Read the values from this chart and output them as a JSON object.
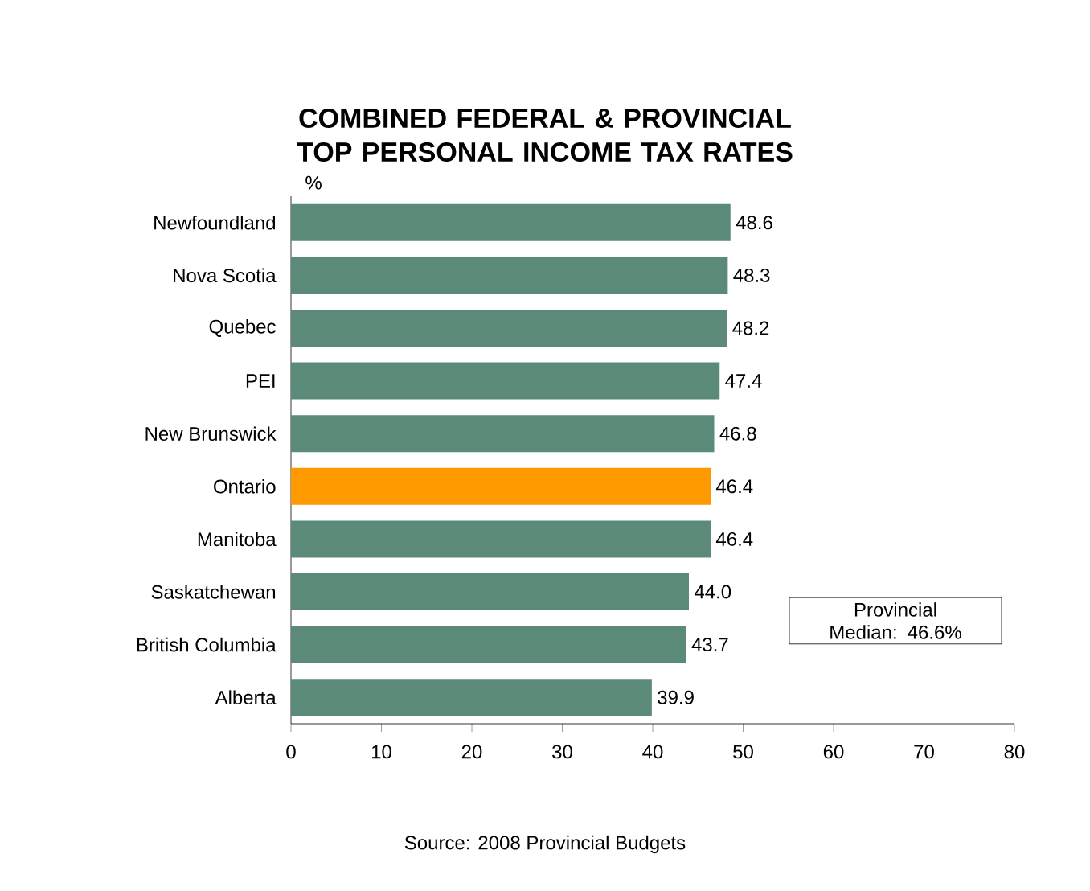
{
  "chart_data": {
    "type": "bar",
    "orientation": "horizontal",
    "title": "COMBINED FEDERAL & PROVINCIAL TOP PERSONAL INCOME TAX RATES",
    "xlabel": "%",
    "categories": [
      "Newfoundland",
      "Nova Scotia",
      "Quebec",
      "PEI",
      "New Brunswick",
      "Ontario",
      "Manitoba",
      "Saskatchewan",
      "British Columbia",
      "Alberta"
    ],
    "values": [
      48.6,
      48.3,
      48.2,
      47.4,
      46.8,
      46.4,
      46.4,
      44.0,
      43.7,
      39.9
    ],
    "value_labels": [
      "48.6",
      "48.3",
      "48.2",
      "47.4",
      "46.8",
      "46.4",
      "46.4",
      "44.0",
      "43.7",
      "39.9"
    ],
    "colors": [
      "#5b8a78",
      "#5b8a78",
      "#5b8a78",
      "#5b8a78",
      "#5b8a78",
      "#ff9900",
      "#5b8a78",
      "#5b8a78",
      "#5b8a78",
      "#5b8a78"
    ],
    "xlim": [
      0,
      80
    ],
    "xticks": [
      0,
      10,
      20,
      30,
      40,
      50,
      60,
      70,
      80
    ],
    "annotations": [
      "Provincial Median: 46.6%",
      "Source: 2008 Provincial Budgets"
    ]
  }
}
